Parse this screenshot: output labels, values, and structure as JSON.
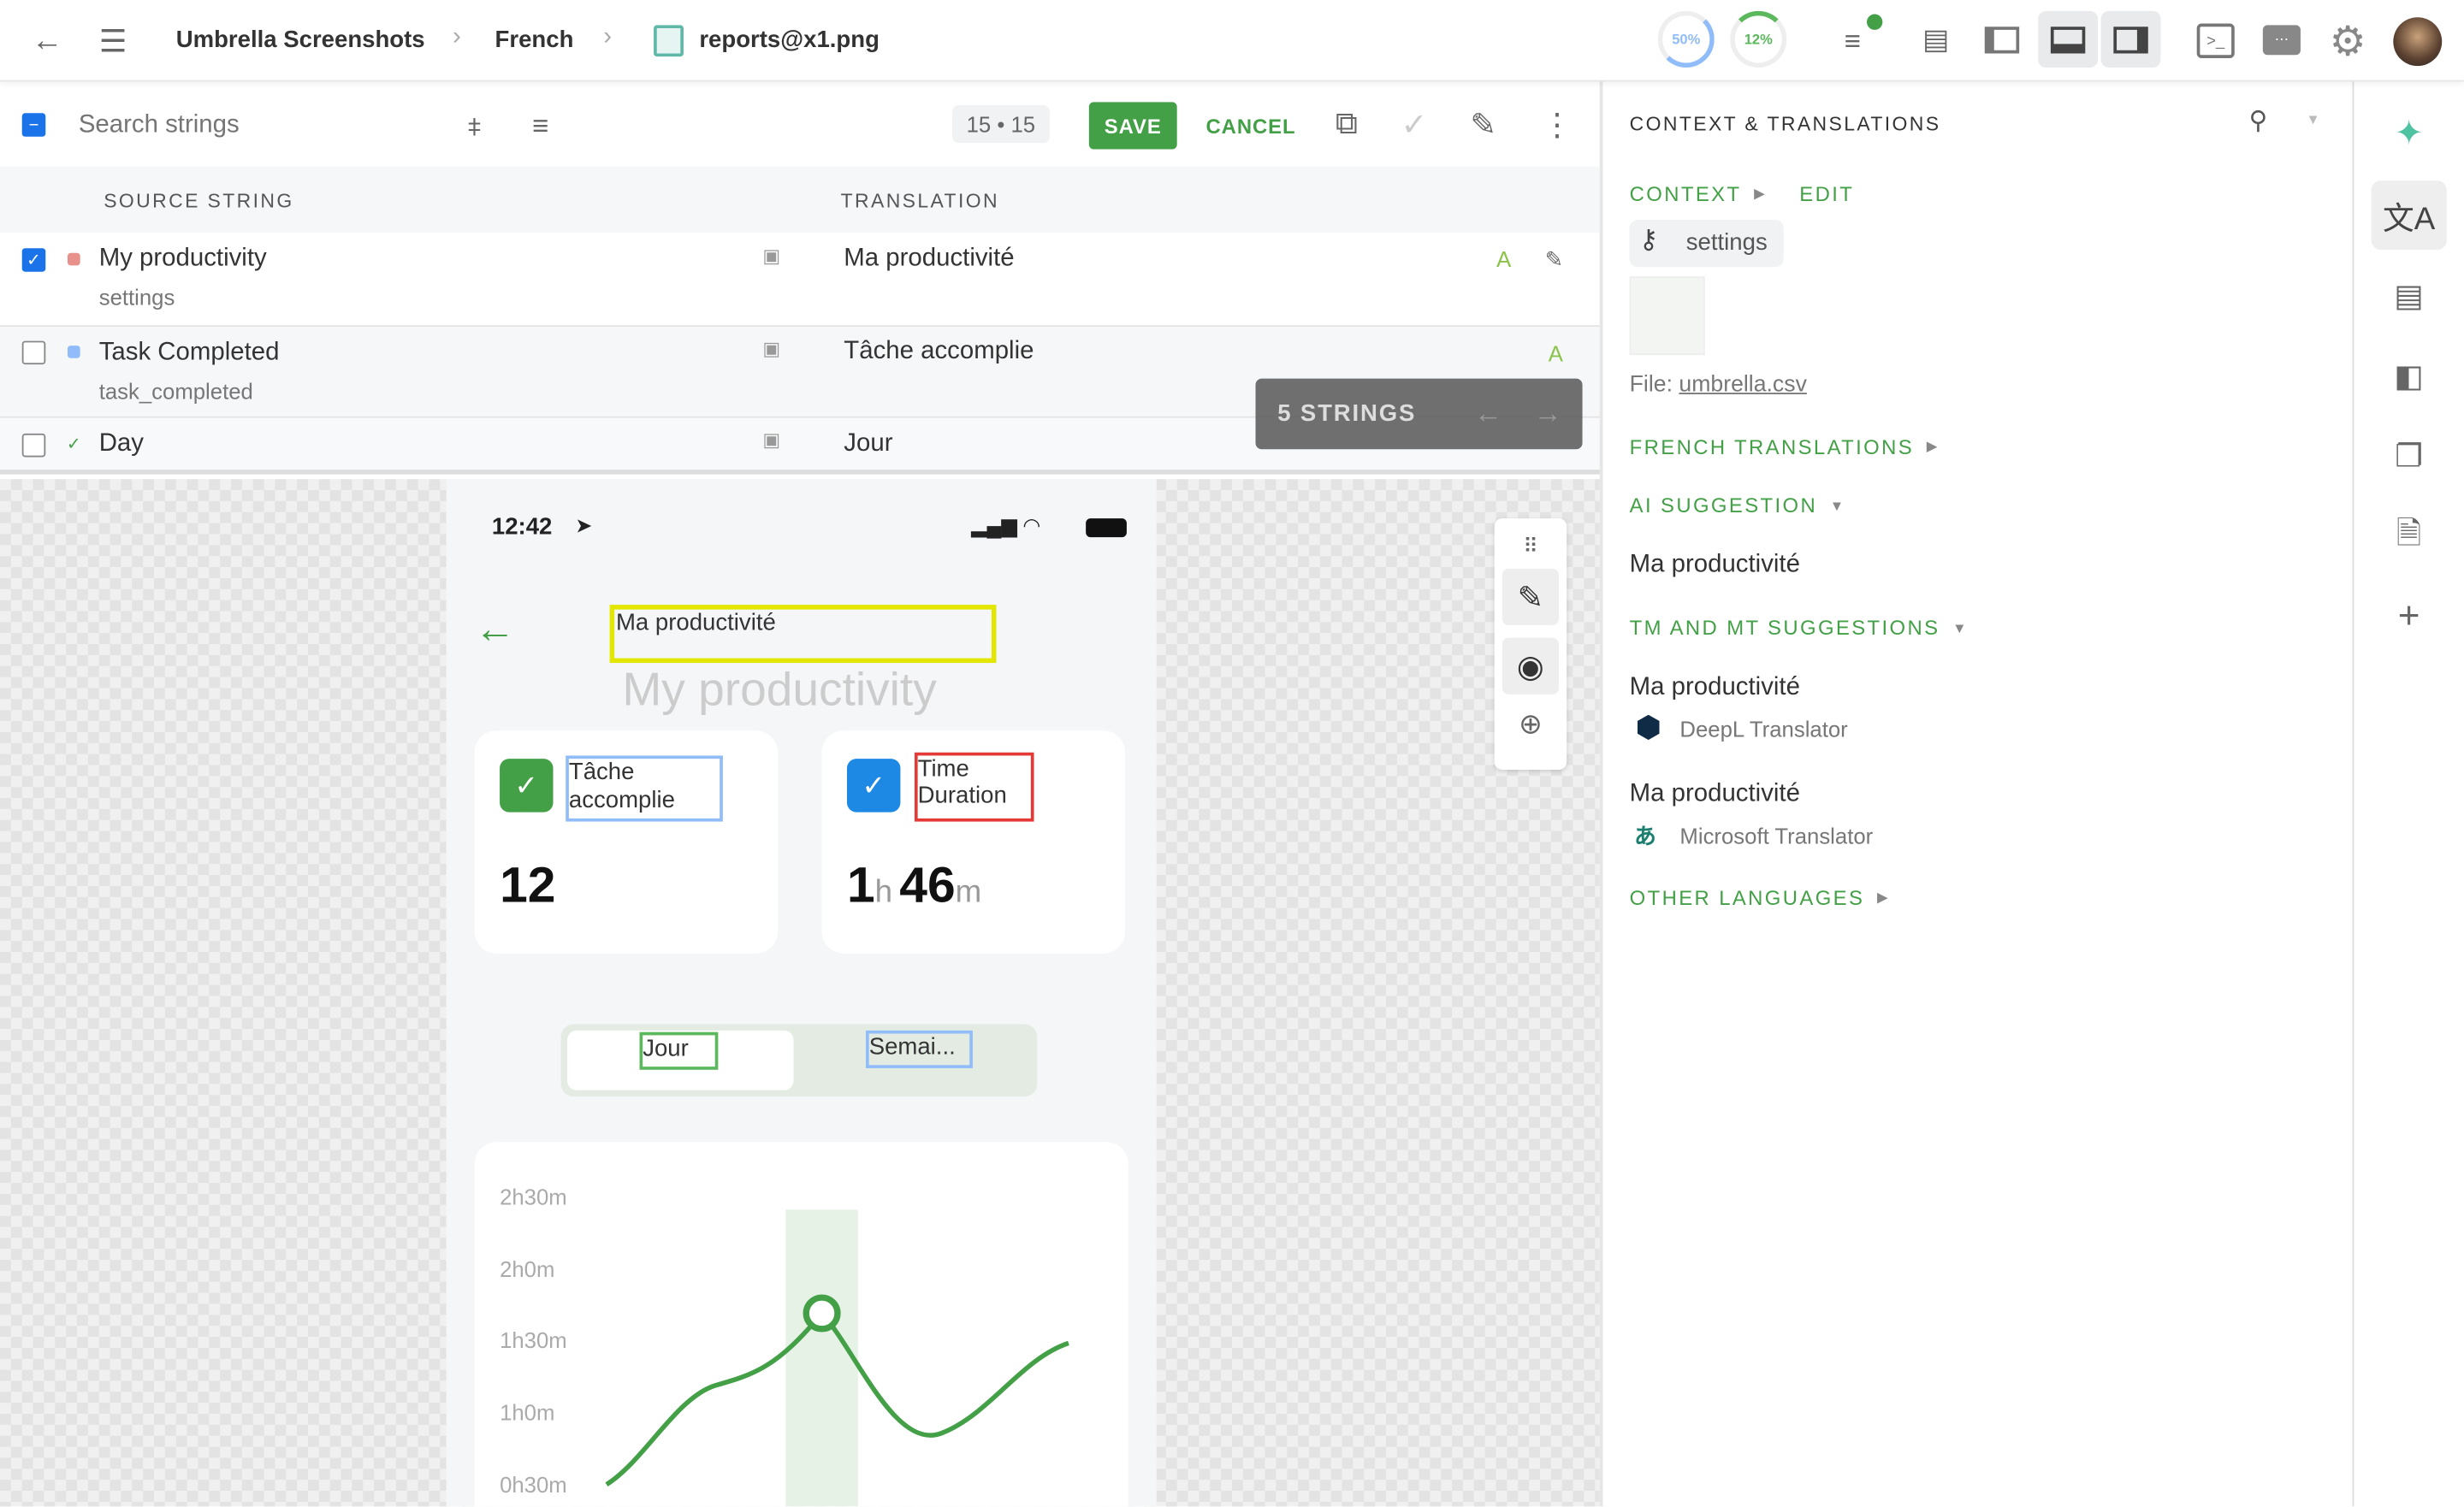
{
  "topbar": {
    "breadcrumb": [
      "Umbrella Screenshots",
      "French",
      "reports@x1.png"
    ],
    "progress_translated": "50%",
    "progress_approved": "12%",
    "colors": {
      "translated": "#90bdf9",
      "approved": "#5cb85c"
    }
  },
  "toolbar": {
    "search_placeholder": "Search strings",
    "counter": "15 • 15",
    "save_label": "SAVE",
    "cancel_label": "CANCEL"
  },
  "table": {
    "headers": [
      "SOURCE STRING",
      "TRANSLATION"
    ],
    "rows": [
      {
        "source": "My productivity",
        "key": "settings",
        "translation": "Ma productivité",
        "checked": true,
        "status_color": "#e8918a"
      },
      {
        "source": "Task Completed",
        "key": "task_completed",
        "translation": "Tâche accomplie",
        "checked": false,
        "status_color": "#90bdf9"
      },
      {
        "source": "Day",
        "key": "",
        "translation": "Jour",
        "checked": false,
        "status_color": "#43a047"
      }
    ],
    "overlay_label": "5 STRINGS"
  },
  "preview": {
    "time": "12:42",
    "title_translation": "Ma productivité",
    "title_source": "My productivity",
    "card1_label": "Tâche accomplie",
    "card1_value": "12",
    "card2_label": "Time Duration",
    "card2_hours": "1",
    "card2_h": "h",
    "card2_minutes": "46",
    "card2_m": "m",
    "tab_day": "Jour",
    "tab_week": "Semai...",
    "y_ticks": [
      "2h30m",
      "2h0m",
      "1h30m",
      "1h0m",
      "0h30m"
    ]
  },
  "panel": {
    "title": "CONTEXT & TRANSLATIONS",
    "context_label": "CONTEXT",
    "edit_label": "EDIT",
    "key_chip": "settings",
    "file_label": "File:",
    "file_name": "umbrella.csv",
    "french_translations": "FRENCH TRANSLATIONS",
    "ai_suggestion": "AI SUGGESTION",
    "ai_text": "Ma productivité",
    "tm_mt": "TM AND MT SUGGESTIONS",
    "suggestions": [
      {
        "text": "Ma productivité",
        "provider": "DeepL Translator"
      },
      {
        "text": "Ma productivité",
        "provider": "Microsoft Translator"
      }
    ],
    "other_languages": "OTHER LANGUAGES"
  }
}
